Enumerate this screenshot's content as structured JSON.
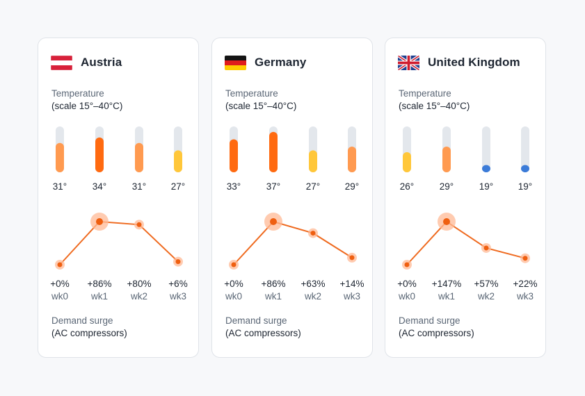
{
  "colors": {
    "track": "#e3e7ec",
    "temp_hot": "#ff6a10",
    "temp_warm": "#ff9a50",
    "temp_mild": "#ffc73a",
    "temp_cool": "#3b7bd8",
    "line": "#ef6a1f",
    "point_halo": "#ffb995",
    "point_core": "#ef5f10"
  },
  "temperature_label": "Temperature",
  "temperature_scale_label": "(scale 15°–40°C)",
  "demand_label": "Demand surge",
  "demand_sub_label": "(AC compressors)",
  "chart_data": [
    {
      "type": "bar",
      "country": "Austria",
      "flag": "austria-flag",
      "temperature": {
        "unit": "°",
        "ylim": [
          15,
          40
        ],
        "values": [
          31,
          34,
          31,
          27
        ]
      },
      "demand": {
        "categories": [
          "wk0",
          "wk1",
          "wk2",
          "wk3"
        ],
        "values": [
          0,
          86,
          80,
          6
        ],
        "unit": "%",
        "peak_index": 1
      }
    },
    {
      "type": "bar",
      "country": "Germany",
      "flag": "germany-flag",
      "temperature": {
        "unit": "°",
        "ylim": [
          15,
          40
        ],
        "values": [
          33,
          37,
          27,
          29
        ]
      },
      "demand": {
        "categories": [
          "wk0",
          "wk1",
          "wk2",
          "wk3"
        ],
        "values": [
          0,
          86,
          63,
          14
        ],
        "unit": "%",
        "peak_index": 1
      }
    },
    {
      "type": "bar",
      "country": "United Kingdom",
      "flag": "uk-flag",
      "temperature": {
        "unit": "°",
        "ylim": [
          15,
          40
        ],
        "values": [
          26,
          29,
          19,
          19
        ]
      },
      "demand": {
        "categories": [
          "wk0",
          "wk1",
          "wk2",
          "wk3"
        ],
        "values": [
          0,
          147,
          57,
          22
        ],
        "unit": "%",
        "peak_index": 1
      }
    }
  ]
}
